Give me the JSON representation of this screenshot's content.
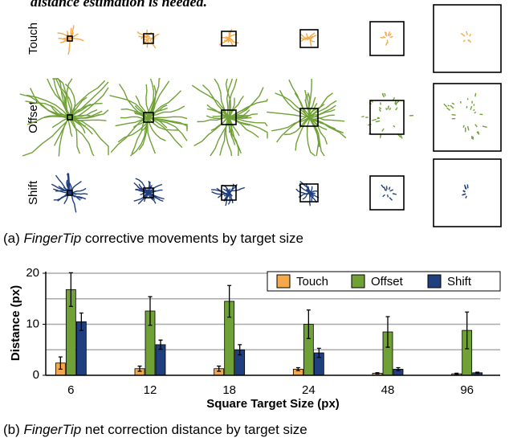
{
  "intro_text": "distance estimation is needed.",
  "traces": {
    "rows": [
      "Touch",
      "Offset",
      "Shift"
    ],
    "caption": {
      "prefix": "(a) ",
      "emphasis": "FingerTip",
      "rest": " corrective movements by target size"
    }
  },
  "chart_data": {
    "type": "bar",
    "ylabel": "Distance (px)",
    "xlabel": "Square Target Size (px)",
    "categories": [
      "6",
      "12",
      "18",
      "24",
      "48",
      "96"
    ],
    "series": [
      {
        "name": "Touch",
        "color": "#f5a94b",
        "values": [
          2.4,
          1.3,
          1.3,
          1.2,
          0.4,
          0.3
        ],
        "errors": [
          1.2,
          0.5,
          0.5,
          0.3,
          0.1,
          0.1
        ]
      },
      {
        "name": "Offset",
        "color": "#70a136",
        "values": [
          16.8,
          12.6,
          14.5,
          10.0,
          8.5,
          8.8
        ],
        "errors": [
          3.3,
          2.8,
          3.1,
          2.8,
          3.0,
          3.6
        ]
      },
      {
        "name": "Shift",
        "color": "#1f3f7f",
        "values": [
          10.5,
          6.0,
          5.0,
          4.4,
          1.2,
          0.5
        ],
        "errors": [
          1.7,
          0.9,
          1.0,
          0.9,
          0.3,
          0.1
        ]
      }
    ],
    "ylim": [
      0,
      20
    ],
    "yticks": [
      0,
      10,
      20
    ],
    "minor_gridlines": [
      5,
      15
    ],
    "grid": true,
    "legend": "top-right",
    "caption": {
      "prefix": "(b) ",
      "emphasis": "FingerTip",
      "rest": " net correction distance by target size"
    }
  }
}
